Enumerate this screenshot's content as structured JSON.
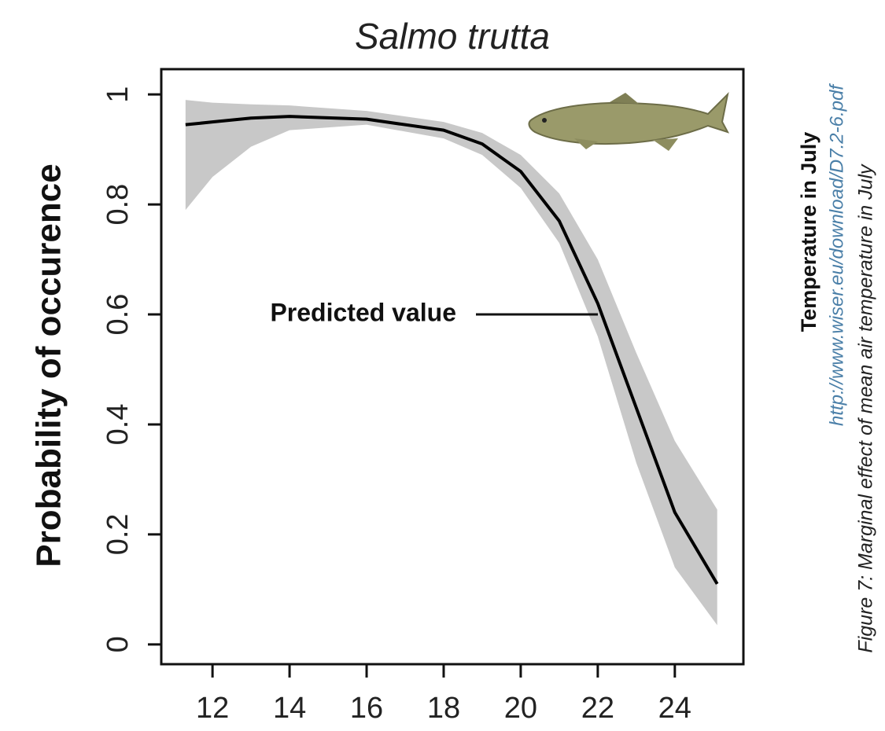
{
  "chart_data": {
    "type": "line",
    "title": "Salmo trutta",
    "y_label": "Probability of occurence",
    "annotation": "Predicted value",
    "x": [
      11.3,
      12,
      13,
      14,
      16,
      18,
      19,
      20,
      21,
      22,
      23,
      24,
      25.1
    ],
    "series": [
      {
        "name": "Predicted value",
        "color": "#000000",
        "values": [
          0.945,
          0.95,
          0.957,
          0.96,
          0.955,
          0.935,
          0.91,
          0.86,
          0.77,
          0.62,
          0.43,
          0.24,
          0.11
        ]
      }
    ],
    "band": {
      "color": "#c8c8c8",
      "lower": [
        0.79,
        0.85,
        0.905,
        0.935,
        0.945,
        0.92,
        0.89,
        0.83,
        0.73,
        0.56,
        0.33,
        0.14,
        0.035
      ],
      "upper": [
        0.99,
        0.985,
        0.982,
        0.98,
        0.97,
        0.95,
        0.93,
        0.89,
        0.82,
        0.7,
        0.53,
        0.37,
        0.245
      ]
    },
    "xlim": [
      10.67,
      25.78
    ],
    "ylim": [
      -0.036,
      1.046
    ],
    "xticks": [
      12,
      14,
      16,
      18,
      20,
      22,
      24
    ],
    "yticks": [
      0,
      0.2,
      0.4,
      0.6,
      0.8,
      1
    ],
    "side_text": {
      "heading": "Temperature in July",
      "url": "http://www.wiser.eu/download/D7.2-6.pdf",
      "caption": "Figure 7: Marginal effect of mean air temperature in July"
    }
  }
}
